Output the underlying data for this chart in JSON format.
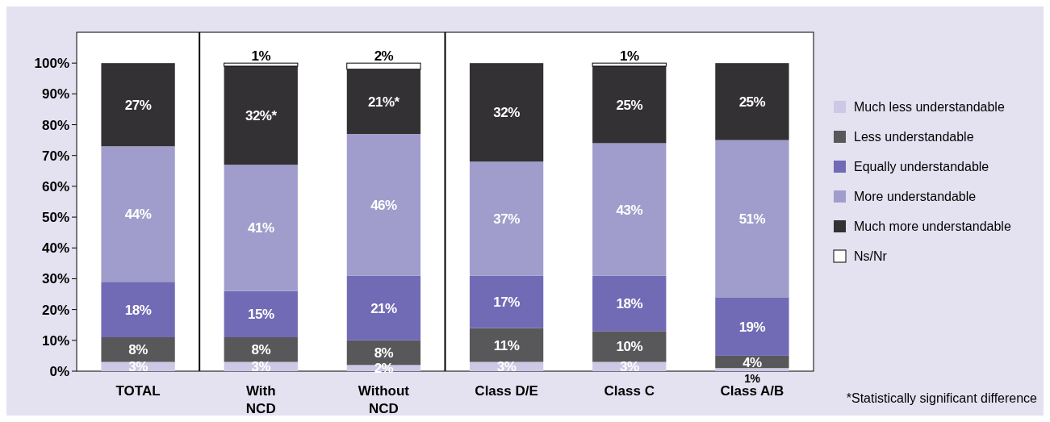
{
  "chart_data": {
    "type": "bar",
    "stacked": true,
    "categories": [
      "TOTAL",
      "With\nNCD",
      "Without\nNCD",
      "Class D/E",
      "Class C",
      "Class A/B"
    ],
    "series": [
      {
        "name": "Much less understandable",
        "color": "#cdc8e6",
        "values": [
          3,
          3,
          2,
          3,
          3,
          1
        ],
        "value_labels": [
          "3%",
          "3%",
          "2%",
          "3%",
          "3%",
          "1%"
        ]
      },
      {
        "name": "Less understandable",
        "color": "#58575a",
        "values": [
          8,
          8,
          8,
          11,
          10,
          4
        ],
        "value_labels": [
          "8%",
          "8%",
          "8%",
          "11%",
          "10%",
          "4%"
        ]
      },
      {
        "name": "Equally understandable",
        "color": "#716ab5",
        "values": [
          18,
          15,
          21,
          17,
          18,
          19
        ],
        "value_labels": [
          "18%",
          "15%",
          "21%",
          "17%",
          "18%",
          "19%"
        ]
      },
      {
        "name": "More understandable",
        "color": "#a09dcc",
        "values": [
          44,
          41,
          46,
          37,
          43,
          51
        ],
        "value_labels": [
          "44%",
          "41%",
          "46%",
          "37%",
          "43%",
          "51%"
        ]
      },
      {
        "name": "Much more understandable",
        "color": "#333133",
        "values": [
          27,
          32,
          21,
          32,
          25,
          25
        ],
        "value_labels": [
          "27%",
          "32%*",
          "21%*",
          "32%",
          "25%",
          "25%"
        ]
      },
      {
        "name": "Ns/Nr",
        "color": "#ffffff",
        "values": [
          null,
          1,
          2,
          null,
          1,
          null
        ],
        "value_labels": [
          null,
          "1%",
          "2%",
          null,
          "1%",
          null
        ]
      }
    ],
    "ylim": [
      0,
      110
    ],
    "yticks": [
      {
        "value": 0,
        "label": "0%"
      },
      {
        "value": 10,
        "label": "10%"
      },
      {
        "value": 20,
        "label": "20%"
      },
      {
        "value": 30,
        "label": "30%"
      },
      {
        "value": 40,
        "label": "40%"
      },
      {
        "value": 50,
        "label": "50%"
      },
      {
        "value": 60,
        "label": "60%"
      },
      {
        "value": 70,
        "label": "70%"
      },
      {
        "value": 80,
        "label": "80%"
      },
      {
        "value": 90,
        "label": "90%"
      },
      {
        "value": 100,
        "label": "100%"
      }
    ],
    "grid": false,
    "legend": "right",
    "annotations": [
      "*Statistically significant difference"
    ]
  }
}
